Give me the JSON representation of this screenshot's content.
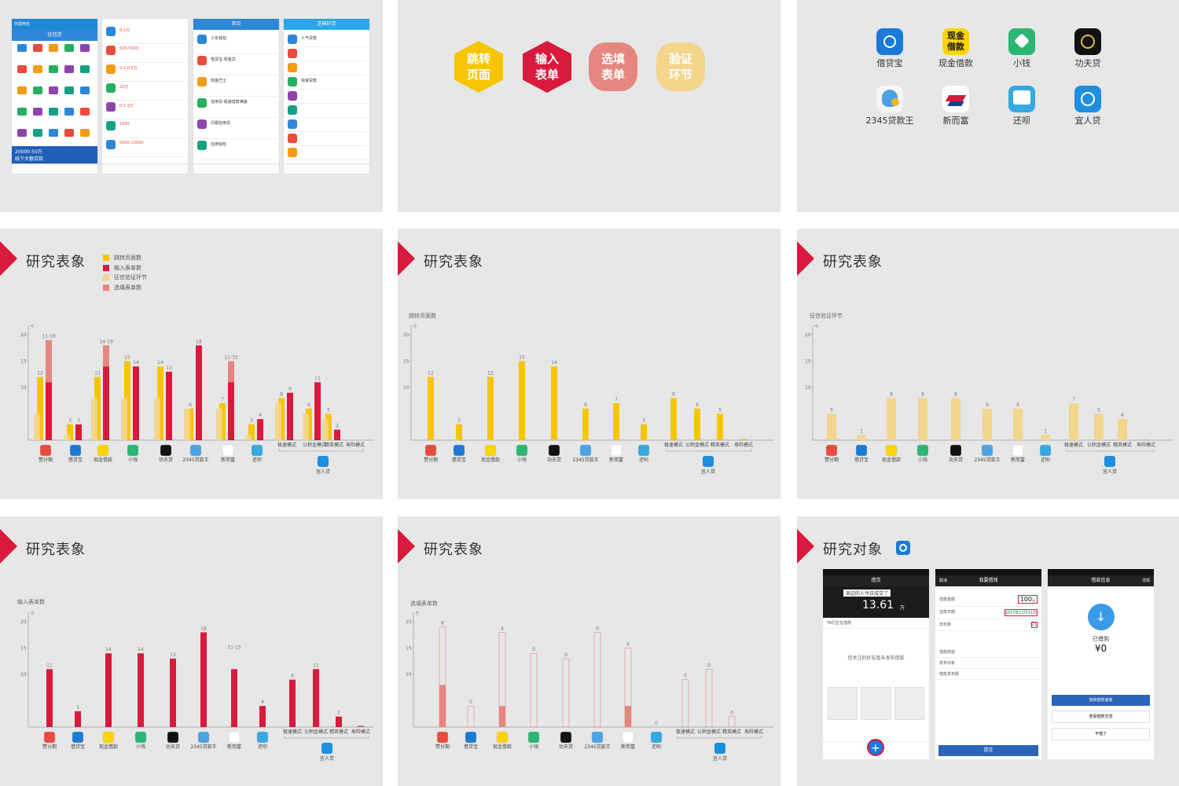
{
  "phones": {
    "p1_status": "中国电信",
    "p1_title": "征信贷",
    "p1_banner": "20000-50万",
    "p1_banner2": "线下大额贷款",
    "p2_items": [
      "0-1万",
      "500-5000",
      "0.1-0.5万",
      "20万",
      "0.1-1万",
      "100¥",
      "5000-10000"
    ],
    "p3_title": "首页",
    "p3_items": [
      "小花钱包",
      "借贷宝-现金贷",
      "现金巴士",
      "信用贷-极速借款满速",
      "闪银信用贷",
      "信用钱包"
    ],
    "p4_title": "芝麻好贷",
    "p4_sections": [
      "人气贷款",
      "快速贷款"
    ]
  },
  "hexagons": [
    {
      "label": "跳转\n页面",
      "color": "#f7c500"
    },
    {
      "label": "输入\n表单",
      "color": "#d81a3c"
    },
    {
      "label": "选填\n表单",
      "color": "#e5877e"
    },
    {
      "label": "验证\n环节",
      "color": "#f3d58b"
    }
  ],
  "apps_top": [
    "借贷宝",
    "现金借款",
    "小钱",
    "功夫贷",
    "2345贷款王",
    "新而富",
    "还呗",
    "宜人贷"
  ],
  "heading_research": "研究表象",
  "heading_object": "研究对象",
  "legend": [
    "跳转页面数",
    "输入表单数",
    "征信验证环节",
    "选填表单数"
  ],
  "colors": {
    "jump": "#f7c500",
    "input": "#d81a3c",
    "verify": "#f3d58b",
    "optional": "#e5877e",
    "accent": "#d81a3c"
  },
  "axis_unit": "个",
  "chart_ylabels": {
    "jump": "跳转页面数",
    "verify": "征信验证环节",
    "input": "输入表单数",
    "optional": "选填表单数"
  },
  "chart_apps": [
    "赞分期",
    "借贷宝",
    "现金借款",
    "小钱",
    "功夫贷",
    "2345贷款王",
    "新而富",
    "还呗"
  ],
  "chart_modes": [
    "极速模式",
    "公积金模式",
    "精英模式",
    "寿险模式"
  ],
  "chart_yirendai": "宜人贷",
  "chart_data": [
    {
      "type": "bar",
      "title": "研究表象",
      "categories": [
        "赞分期",
        "借贷宝",
        "现金借款",
        "小钱",
        "功夫贷",
        "2345贷款王",
        "新而富",
        "还呗",
        "极速模式",
        "公积金模式",
        "精英模式",
        "寿险模式"
      ],
      "series": [
        {
          "name": "跳转页面数",
          "values": [
            12,
            3,
            12,
            15,
            14,
            6,
            7,
            3,
            8,
            6,
            5,
            0
          ]
        },
        {
          "name": "输入表单数",
          "values": [
            11,
            3,
            14,
            14,
            13,
            18,
            11,
            4,
            9,
            11,
            2,
            0
          ]
        },
        {
          "name": "征信验证环节",
          "values": [
            5,
            1,
            8,
            8,
            8,
            6,
            6,
            1,
            7,
            5,
            4,
            0
          ]
        },
        {
          "name": "选填表单数",
          "values": [
            8,
            0,
            4,
            0,
            0,
            0,
            4,
            0,
            0,
            0,
            0,
            0
          ]
        }
      ],
      "value_labels": [
        "12",
        "11-19",
        "3",
        "3",
        "12",
        "14-19",
        "15",
        "14",
        "14",
        "13",
        "6",
        "18",
        "7",
        "11-15",
        "3",
        "4",
        "8",
        "9",
        "6",
        "11",
        "5",
        "2"
      ],
      "ylim": [
        0,
        20
      ],
      "yticks": [
        10,
        15,
        20
      ]
    },
    {
      "type": "bar",
      "ylabel": "跳转页面数",
      "categories": [
        "赞分期",
        "借贷宝",
        "现金借款",
        "小钱",
        "功夫贷",
        "2345贷款王",
        "新而富",
        "还呗",
        "极速模式",
        "公积金模式",
        "精英模式",
        "寿险模式"
      ],
      "values": [
        12,
        3,
        12,
        15,
        14,
        6,
        7,
        3,
        8,
        6,
        5,
        0
      ],
      "ylim": [
        0,
        20
      ],
      "yticks": [
        10,
        15,
        20
      ]
    },
    {
      "type": "bar",
      "ylabel": "征信验证环节",
      "categories": [
        "赞分期",
        "借贷宝",
        "现金借款",
        "小钱",
        "功夫贷",
        "2345贷款王",
        "新而富",
        "还呗",
        "极速模式",
        "公积金模式",
        "精英模式",
        "寿险模式"
      ],
      "values": [
        5,
        1,
        8,
        8,
        8,
        6,
        6,
        1,
        7,
        5,
        4,
        0
      ],
      "ylim": [
        0,
        20
      ],
      "yticks": [
        10,
        15,
        20
      ]
    },
    {
      "type": "bar",
      "ylabel": "输入表单数",
      "categories": [
        "赞分期",
        "借贷宝",
        "现金借款",
        "小钱",
        "功夫贷",
        "2345贷款王",
        "新而富",
        "还呗",
        "极速模式",
        "公积金模式",
        "精英模式",
        "寿险模式"
      ],
      "values": [
        11,
        3,
        14,
        14,
        13,
        18,
        11,
        4,
        9,
        11,
        2,
        0
      ],
      "value_labels": [
        "11",
        "3",
        "14",
        "14",
        "13",
        "18",
        "11-15",
        "4",
        "9",
        "11",
        "2",
        ""
      ],
      "ylim": [
        0,
        20
      ],
      "yticks": [
        10,
        15,
        20
      ]
    },
    {
      "type": "bar",
      "ylabel": "选填表单数",
      "categories": [
        "赞分期",
        "借贷宝",
        "现金借款",
        "小钱",
        "功夫贷",
        "2345贷款王",
        "新而富",
        "还呗",
        "极速模式",
        "公积金模式",
        "精英模式",
        "寿险模式"
      ],
      "values": [
        8,
        0,
        4,
        0,
        0,
        0,
        4,
        0,
        0,
        0,
        0,
        0
      ],
      "value_labels": [
        "8",
        "0",
        "4",
        "0",
        "0",
        "0",
        "4",
        "0",
        "0",
        "0",
        "0",
        ""
      ],
      "ylim": [
        0,
        20
      ],
      "yticks": [
        10,
        15,
        20
      ]
    }
  ],
  "object_phones": {
    "s1_title": "借贷",
    "s1_amount": "13.61",
    "s1_unit": "万",
    "s1_notice": "周边的人今日成交了",
    "s1_section": "TA们正在借款",
    "s1_empty": "您关注的好友暂未发布借款",
    "s2_cancel": "取消",
    "s2_title": "我要借钱",
    "s2_amount_label": "借款金额",
    "s2_amount": "100",
    "s2_amount_unit": "元",
    "s2_date_label": "还款日期",
    "s2_date": "2017年12月31日",
    "s2_rate_label": "年利率",
    "s2_rate": "21",
    "s2_rows": [
      "借款用途",
      "发布对象",
      "借款发布期"
    ],
    "s2_submit": "提交",
    "s3_title": "借款信息",
    "s3_detail": "详情",
    "s3_status": "已借到",
    "s3_value": "¥0",
    "s3_btn1": "加快借款速度",
    "s3_btn2": "查看借款交流",
    "s3_btn3": "不借了"
  }
}
